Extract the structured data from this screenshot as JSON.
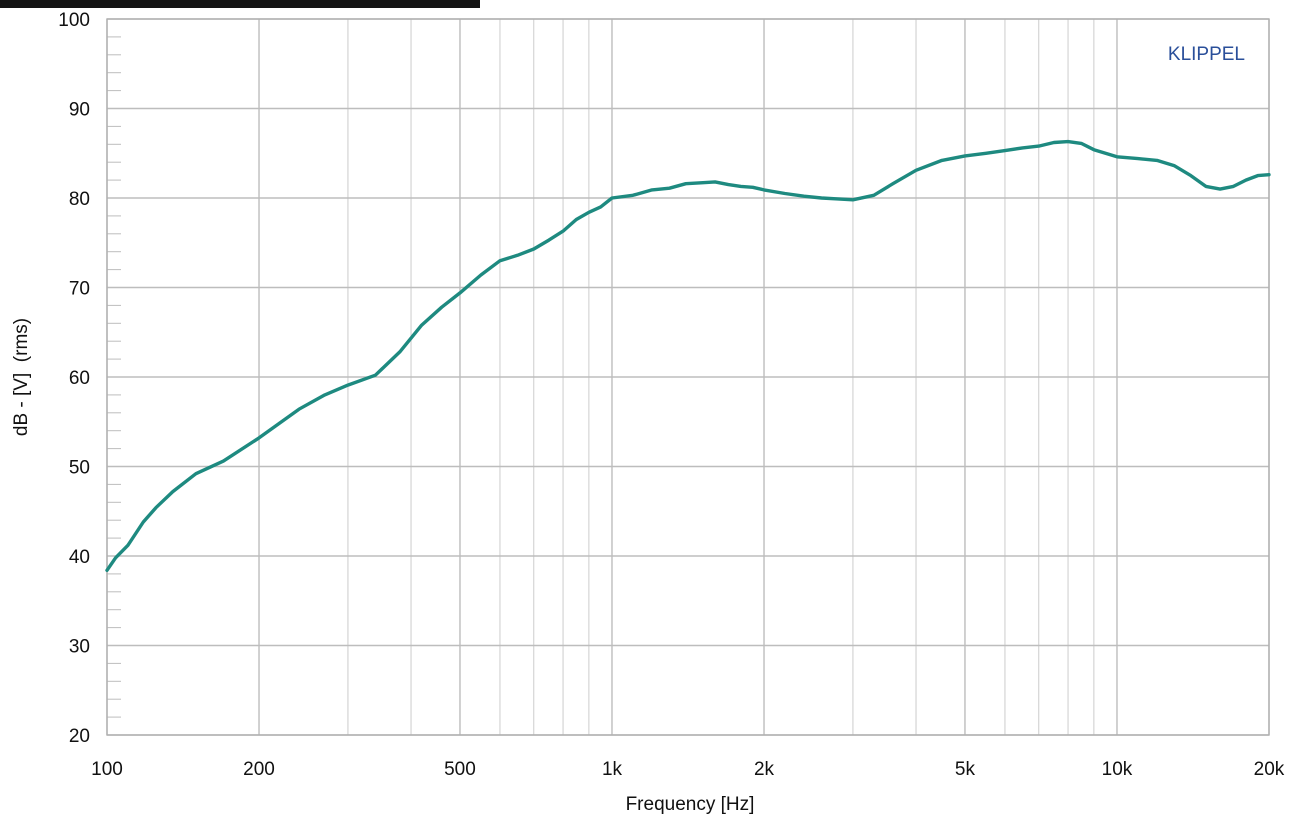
{
  "chart_data": {
    "type": "line",
    "title": "",
    "xlabel": "Frequency [Hz]",
    "ylabel": "dB - [V]  (rms)",
    "watermark": "KLIPPEL",
    "x_scale": "log",
    "xlim": [
      100,
      20000
    ],
    "ylim": [
      20,
      100
    ],
    "grid": true,
    "x_ticks": [
      {
        "value": 100,
        "label": "100"
      },
      {
        "value": 200,
        "label": "200"
      },
      {
        "value": 500,
        "label": "500"
      },
      {
        "value": 1000,
        "label": "1k"
      },
      {
        "value": 2000,
        "label": "2k"
      },
      {
        "value": 5000,
        "label": "5k"
      },
      {
        "value": 10000,
        "label": "10k"
      },
      {
        "value": 20000,
        "label": "20k"
      }
    ],
    "y_ticks": [
      20,
      30,
      40,
      50,
      60,
      70,
      80,
      90,
      100
    ],
    "series": [
      {
        "color": "#1e8a80",
        "x": [
          100,
          104,
          110,
          118,
          125,
          135,
          150,
          170,
          200,
          240,
          270,
          300,
          340,
          380,
          420,
          460,
          500,
          550,
          600,
          650,
          700,
          750,
          800,
          850,
          900,
          950,
          1000,
          1100,
          1200,
          1300,
          1400,
          1500,
          1600,
          1700,
          1800,
          1900,
          2000,
          2200,
          2400,
          2600,
          2800,
          3000,
          3300,
          3600,
          4000,
          4500,
          5000,
          5500,
          6000,
          6500,
          7000,
          7500,
          8000,
          8500,
          9000,
          10000,
          11000,
          12000,
          13000,
          14000,
          15000,
          16000,
          17000,
          18000,
          19000,
          20000
        ],
        "y": [
          38.4,
          39.8,
          41.2,
          43.8,
          45.4,
          47.2,
          49.2,
          50.6,
          53.2,
          56.4,
          58.0,
          59.1,
          60.2,
          62.8,
          65.8,
          67.8,
          69.4,
          71.4,
          73.0,
          73.6,
          74.3,
          75.3,
          76.3,
          77.6,
          78.4,
          79.0,
          80.0,
          80.3,
          80.9,
          81.1,
          81.6,
          81.7,
          81.8,
          81.5,
          81.3,
          81.2,
          80.9,
          80.5,
          80.2,
          80.0,
          79.9,
          79.8,
          80.3,
          81.6,
          83.1,
          84.2,
          84.7,
          85.0,
          85.3,
          85.6,
          85.8,
          86.2,
          86.3,
          86.1,
          85.4,
          84.6,
          84.4,
          84.2,
          83.6,
          82.5,
          81.3,
          81.0,
          81.3,
          82.0,
          82.5,
          82.6
        ]
      }
    ]
  }
}
